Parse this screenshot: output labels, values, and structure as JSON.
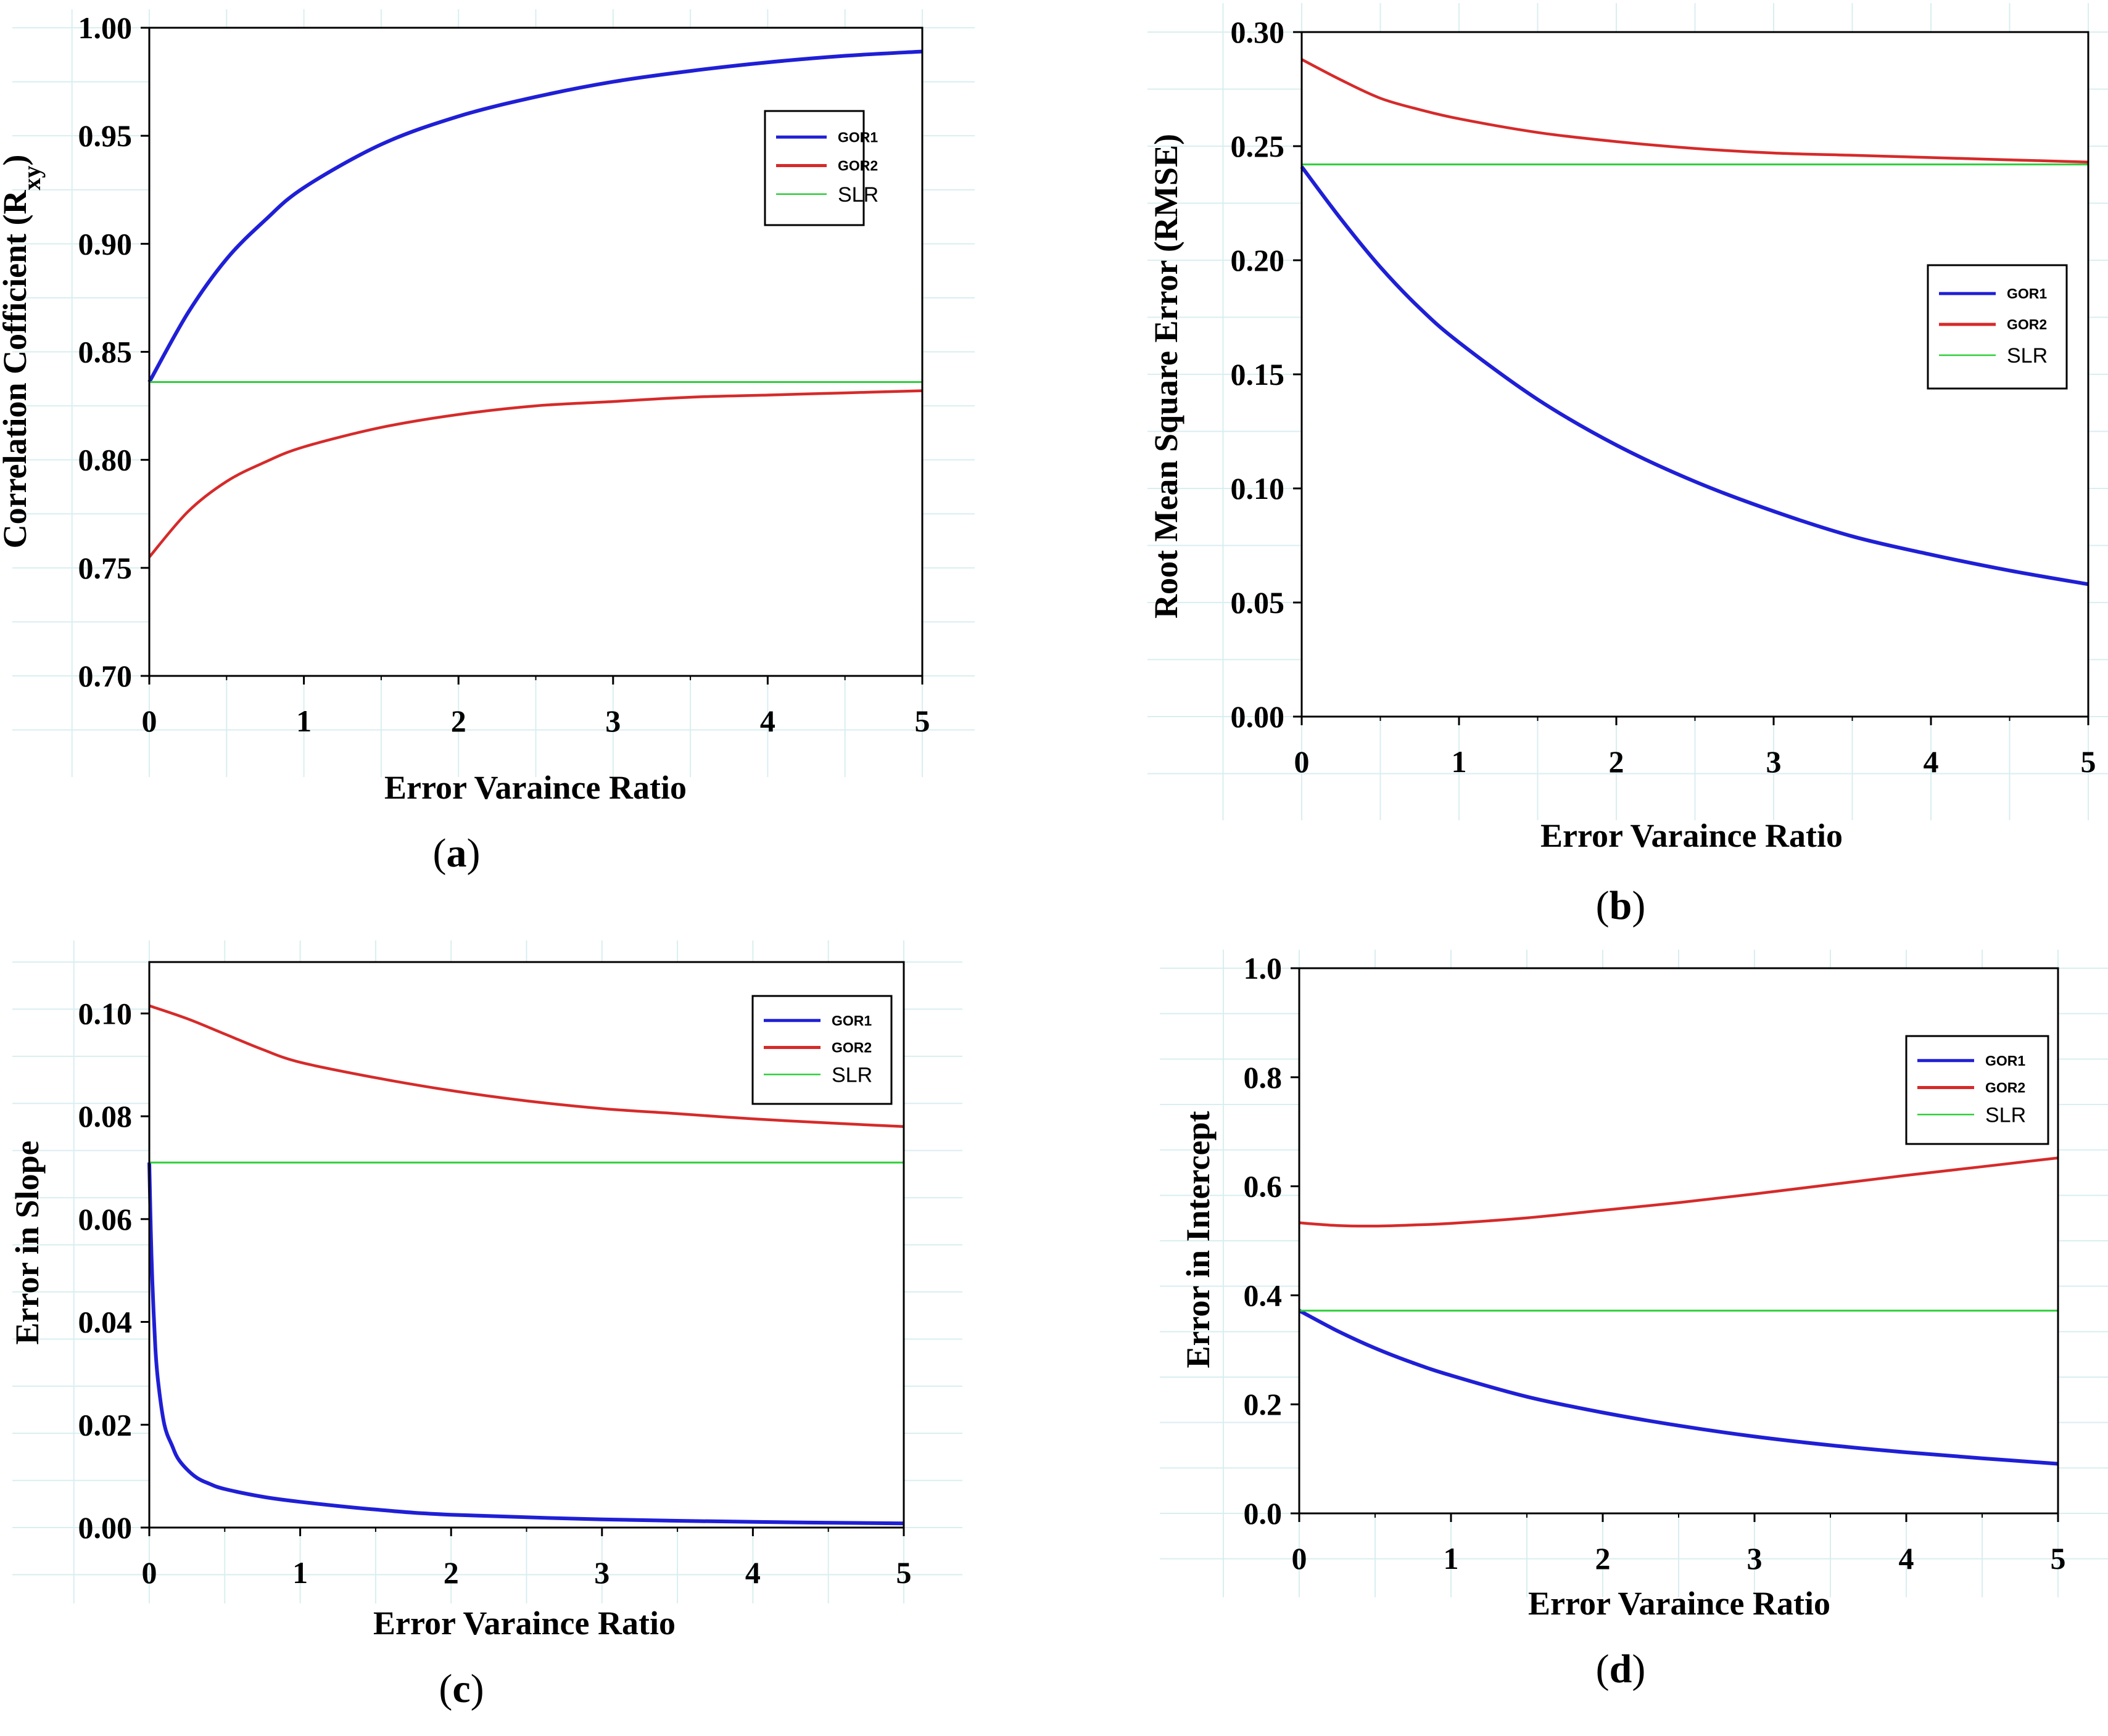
{
  "colors": {
    "GOR1": "#1f1fd6",
    "GOR2": "#d62a2a",
    "SLR": "#2ecf3a",
    "grid": "#d9eef0"
  },
  "chart_data": [
    {
      "id": "a",
      "type": "line",
      "panel_label": "a",
      "xlabel": "Error Varaince Ratio",
      "ylabel": "Correlation Cofficient (R",
      "ylabel_sub": "xy",
      "ylabel_close": ")",
      "xlim": [
        0,
        5
      ],
      "ylim": [
        0.7,
        1.0
      ],
      "xticks": [
        "0",
        "1",
        "2",
        "3",
        "4",
        "5"
      ],
      "yticks": [
        "0.70",
        "0.75",
        "0.80",
        "0.85",
        "0.90",
        "0.95",
        "1.00"
      ],
      "legend_position": "top-right",
      "series": [
        {
          "name": "GOR1",
          "x": [
            0,
            0.25,
            0.5,
            0.75,
            1,
            1.5,
            2,
            2.5,
            3,
            3.5,
            4,
            4.5,
            5
          ],
          "y": [
            0.836,
            0.868,
            0.893,
            0.911,
            0.926,
            0.946,
            0.959,
            0.968,
            0.975,
            0.98,
            0.984,
            0.987,
            0.989
          ]
        },
        {
          "name": "GOR2",
          "x": [
            0,
            0.25,
            0.5,
            0.75,
            1,
            1.5,
            2,
            2.5,
            3,
            3.5,
            4,
            4.5,
            5
          ],
          "y": [
            0.755,
            0.776,
            0.79,
            0.799,
            0.806,
            0.815,
            0.821,
            0.825,
            0.827,
            0.829,
            0.83,
            0.831,
            0.832
          ]
        },
        {
          "name": "SLR",
          "x": [
            0,
            5
          ],
          "y": [
            0.836,
            0.836
          ]
        }
      ]
    },
    {
      "id": "b",
      "type": "line",
      "panel_label": "b",
      "xlabel": "Error Varaince Ratio",
      "ylabel": "Root Mean Square Error (RMSE)",
      "xlim": [
        0,
        5
      ],
      "ylim": [
        0.0,
        0.3
      ],
      "xticks": [
        "0",
        "1",
        "2",
        "3",
        "4",
        "5"
      ],
      "yticks": [
        "0.00",
        "0.05",
        "0.10",
        "0.15",
        "0.20",
        "0.25",
        "0.30"
      ],
      "legend_position": "upper-right",
      "series": [
        {
          "name": "GOR1",
          "x": [
            0,
            0.25,
            0.5,
            0.75,
            1,
            1.5,
            2,
            2.5,
            3,
            3.5,
            4,
            4.5,
            5
          ],
          "y": [
            0.241,
            0.218,
            0.197,
            0.179,
            0.164,
            0.139,
            0.119,
            0.103,
            0.09,
            0.079,
            0.071,
            0.064,
            0.058
          ]
        },
        {
          "name": "GOR2",
          "x": [
            0,
            0.25,
            0.5,
            0.75,
            1,
            1.5,
            2,
            2.5,
            3,
            3.5,
            4,
            4.5,
            5
          ],
          "y": [
            0.288,
            0.279,
            0.271,
            0.266,
            0.262,
            0.256,
            0.252,
            0.249,
            0.247,
            0.246,
            0.245,
            0.244,
            0.243
          ]
        },
        {
          "name": "SLR",
          "x": [
            0,
            5
          ],
          "y": [
            0.242,
            0.242
          ]
        }
      ]
    },
    {
      "id": "c",
      "type": "line",
      "panel_label": "c",
      "xlabel": "Error Varaince Ratio",
      "ylabel": "Error in Slope",
      "xlim": [
        0,
        5
      ],
      "ylim": [
        0.0,
        0.11
      ],
      "xticks": [
        "0",
        "1",
        "2",
        "3",
        "4",
        "5"
      ],
      "yticks": [
        "0.00",
        "0.02",
        "0.04",
        "0.06",
        "0.08",
        "0.10"
      ],
      "ytick_values": [
        0,
        0.02,
        0.04,
        0.06,
        0.08,
        0.1
      ],
      "legend_position": "top-right",
      "series": [
        {
          "name": "GOR1",
          "x": [
            0,
            0.01,
            0.02,
            0.04,
            0.06,
            0.1,
            0.15,
            0.2,
            0.3,
            0.4,
            0.5,
            0.75,
            1,
            1.5,
            2,
            3,
            4,
            5
          ],
          "y": [
            0.071,
            0.058,
            0.048,
            0.035,
            0.028,
            0.02,
            0.016,
            0.013,
            0.01,
            0.0085,
            0.0075,
            0.006,
            0.005,
            0.0035,
            0.0025,
            0.0016,
            0.0011,
            0.0008
          ]
        },
        {
          "name": "GOR2",
          "x": [
            0,
            0.25,
            0.5,
            0.75,
            1,
            1.5,
            2,
            2.5,
            3,
            3.5,
            4,
            4.5,
            5
          ],
          "y": [
            0.1015,
            0.099,
            0.096,
            0.093,
            0.0905,
            0.0875,
            0.085,
            0.083,
            0.0815,
            0.0805,
            0.0795,
            0.0787,
            0.078
          ]
        },
        {
          "name": "SLR",
          "x": [
            0,
            5
          ],
          "y": [
            0.071,
            0.071
          ]
        }
      ]
    },
    {
      "id": "d",
      "type": "line",
      "panel_label": "d",
      "xlabel": "Error Varaince Ratio",
      "ylabel": "Error in Intercept",
      "xlim": [
        0,
        5
      ],
      "ylim": [
        0.0,
        1.0
      ],
      "xticks": [
        "0",
        "1",
        "2",
        "3",
        "4",
        "5"
      ],
      "yticks": [
        "0.0",
        "0.2",
        "0.4",
        "0.6",
        "0.8",
        "1.0"
      ],
      "legend_position": "upper-right",
      "series": [
        {
          "name": "GOR1",
          "x": [
            0,
            0.25,
            0.5,
            0.75,
            1,
            1.5,
            2,
            2.5,
            3,
            3.5,
            4,
            4.5,
            5
          ],
          "y": [
            0.372,
            0.335,
            0.303,
            0.276,
            0.253,
            0.214,
            0.185,
            0.161,
            0.141,
            0.125,
            0.112,
            0.101,
            0.091
          ]
        },
        {
          "name": "GOR2",
          "x": [
            0,
            0.25,
            0.5,
            0.75,
            1,
            1.5,
            2,
            2.5,
            3,
            3.5,
            4,
            4.5,
            5
          ],
          "y": [
            0.533,
            0.528,
            0.527,
            0.529,
            0.532,
            0.542,
            0.556,
            0.57,
            0.586,
            0.603,
            0.62,
            0.636,
            0.652
          ]
        },
        {
          "name": "SLR",
          "x": [
            0,
            5
          ],
          "y": [
            0.372,
            0.372
          ]
        }
      ]
    }
  ]
}
